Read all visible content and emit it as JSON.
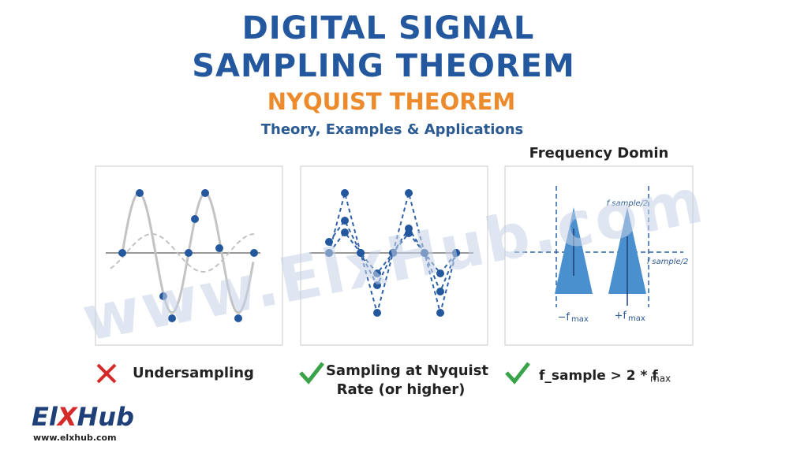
{
  "header": {
    "title_lines": [
      "DIGITAL SIGNAL",
      "SAMPLING THEOREM"
    ],
    "subtitle": "NYQUIST THEOREM",
    "tagline": "Theory, Examples & Applications"
  },
  "panels": [
    {
      "caption": "Undersampling"
    },
    {
      "caption_lines": [
        "Sampling at Nyquist",
        "Rate (or higher)"
      ]
    },
    {
      "title": "Frequency Domin",
      "top_label": "f sample/2",
      "right_label": "f sample/2",
      "left_peak": [
        "−f",
        "max"
      ],
      "right_peak": [
        "+f",
        "max"
      ],
      "caption": [
        "f_sample > 2 * f",
        "max"
      ]
    }
  ],
  "watermark": "www.ElxHub.com",
  "logo": {
    "brand_parts": [
      "El",
      "X",
      "Hub"
    ],
    "url": "www.elxhub.com"
  }
}
